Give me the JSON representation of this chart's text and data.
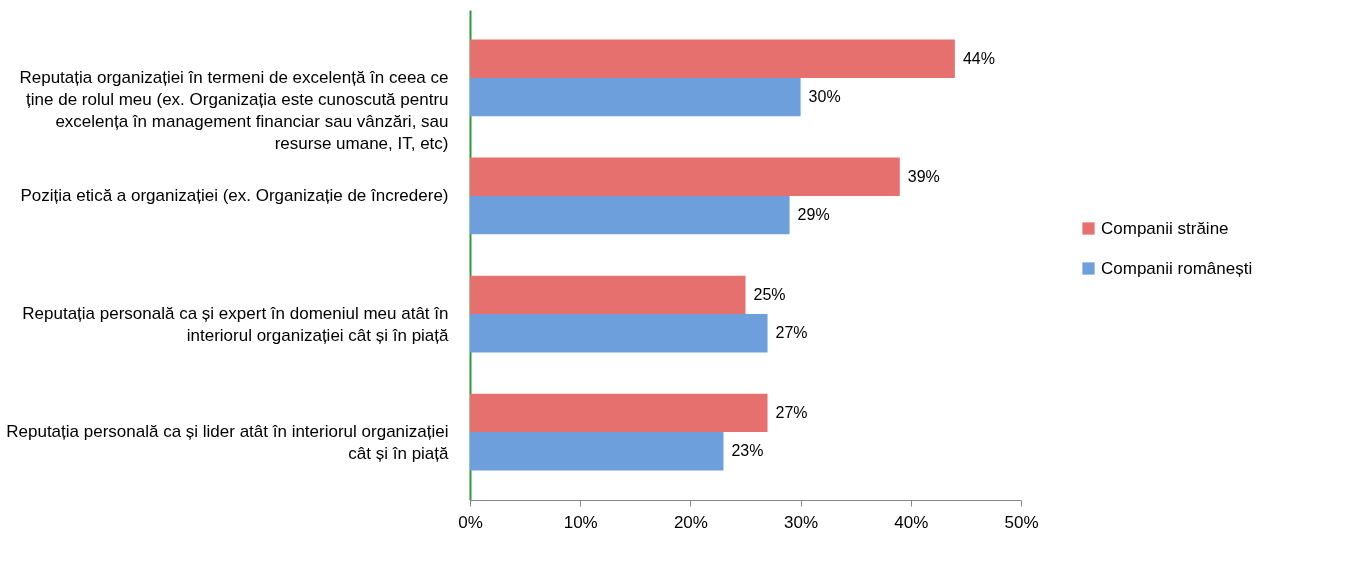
{
  "chart_data": {
    "type": "bar",
    "orientation": "horizontal",
    "categories": [
      "Reputația organizației în termeni de excelență în ceea ce ține de rolul meu (ex. Organizația este cunoscută pentru excelența în management financiar sau vânzări, sau resurse umane, IT, etc)",
      "Poziția etică a organizației (ex. Organizație de încredere)",
      "Reputația personală ca și expert în domeniul meu atât în interiorul organizației cât și în piață",
      "Reputația personală ca și lider atât în interiorul organizației cât și în piață"
    ],
    "series": [
      {
        "name": "Companii străine",
        "color": "#e5706e",
        "values": [
          44,
          39,
          25,
          27
        ],
        "value_labels": [
          "44%",
          "39%",
          "25%",
          "27%"
        ]
      },
      {
        "name": "Companii românești",
        "color": "#6c9fdb",
        "values": [
          30,
          29,
          27,
          23
        ],
        "value_labels": [
          "30%",
          "29%",
          "27%",
          "23%"
        ]
      }
    ],
    "xlim": [
      0,
      50
    ],
    "xticks": [
      {
        "value": 0,
        "label": "0%"
      },
      {
        "value": 10,
        "label": "10%"
      },
      {
        "value": 20,
        "label": "20%"
      },
      {
        "value": 30,
        "label": "30%"
      },
      {
        "value": 40,
        "label": "40%"
      },
      {
        "value": 50,
        "label": "50%"
      }
    ],
    "grid": false,
    "legend": "right"
  }
}
